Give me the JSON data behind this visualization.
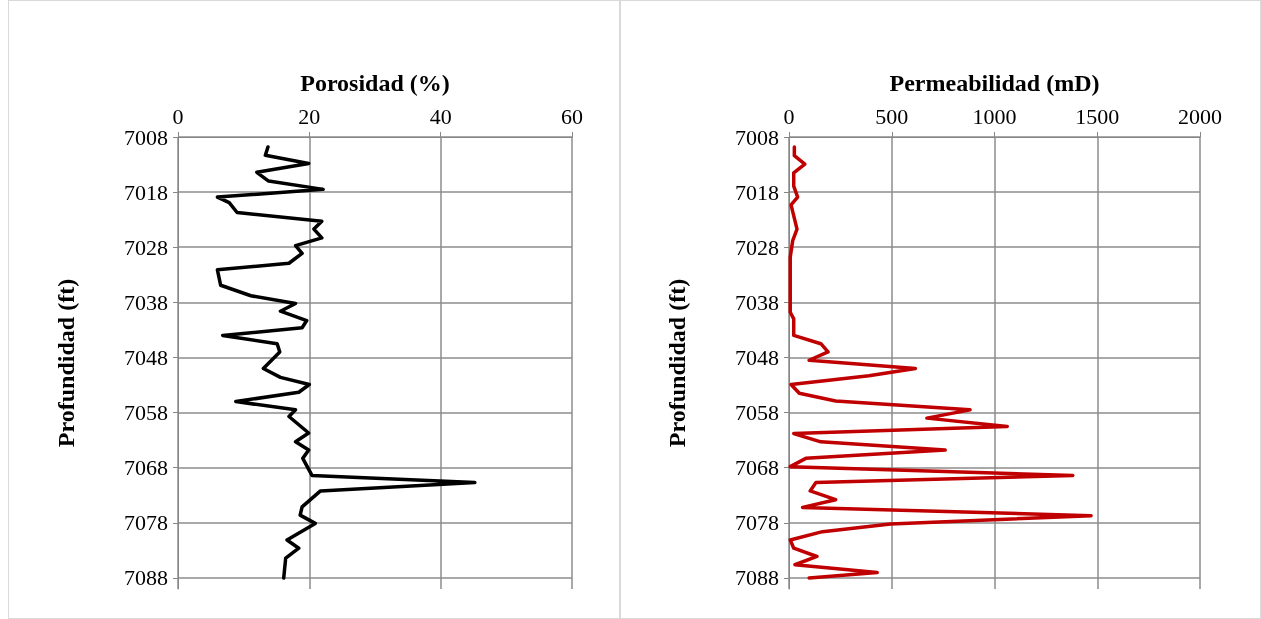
{
  "chart_data": [
    {
      "type": "line",
      "orientation": "horizontal",
      "xlabel": "Porosidad (%)",
      "ylabel": "Profundidad (ft)",
      "color": "#000000",
      "grid": true,
      "x": [
        7009.8,
        7011.3,
        7012.8,
        7014.4,
        7016.0,
        7017.5,
        7018.9,
        7019.9,
        7021.7,
        7023.3,
        7024.7,
        7026.3,
        7027.7,
        7029.1,
        7030.9,
        7032.1,
        7034.9,
        7036.8,
        7038.2,
        7039.6,
        7041.3,
        7042.6,
        7044.0,
        7045.5,
        7047.0,
        7050.0,
        7051.6,
        7052.9,
        7054.3,
        7056.0,
        7057.5,
        7058.7,
        7061.7,
        7063.3,
        7064.8,
        7066.3,
        7069.4,
        7070.7,
        7072.2,
        7075.1,
        7076.6,
        7078.1,
        7081.1,
        7082.6,
        7084.4,
        7088.0
      ],
      "values": [
        13.7,
        13.3,
        19.9,
        12.0,
        13.8,
        22.1,
        6.0,
        7.8,
        9.0,
        21.9,
        20.7,
        21.9,
        17.9,
        18.9,
        16.9,
        6.0,
        6.5,
        11.1,
        17.9,
        15.6,
        19.6,
        18.9,
        6.8,
        15.1,
        15.5,
        13.0,
        15.6,
        20.0,
        18.4,
        8.8,
        17.9,
        16.9,
        19.9,
        17.9,
        19.9,
        19.0,
        20.4,
        45.2,
        21.7,
        18.9,
        18.6,
        20.9,
        16.6,
        18.4,
        16.4,
        16.1
      ],
      "xlim": [
        0,
        60
      ],
      "xticks": [
        0,
        20,
        40,
        60
      ],
      "ylim": [
        7090,
        7008
      ],
      "yticks": [
        7008,
        7018,
        7028,
        7038,
        7048,
        7058,
        7068,
        7078,
        7088
      ]
    },
    {
      "type": "line",
      "orientation": "horizontal",
      "xlabel": "Permeabilidad (mD)",
      "ylabel": "Profundidad (ft)",
      "color": "#c00000",
      "grid": true,
      "x": [
        7009.8,
        7011.4,
        7012.9,
        7014.5,
        7016.9,
        7018.9,
        7020.3,
        7024.7,
        7026.8,
        7029.8,
        7039.8,
        7041.0,
        7044.0,
        7045.5,
        7047.0,
        7048.5,
        7050.0,
        7051.3,
        7052.9,
        7054.5,
        7055.9,
        7057.5,
        7059.0,
        7060.5,
        7061.8,
        7063.3,
        7064.8,
        7066.3,
        7067.8,
        7069.4,
        7070.7,
        7072.2,
        7073.8,
        7075.2,
        7076.7,
        7078.2,
        7079.6,
        7081.1,
        7082.6,
        7084.1,
        7085.6,
        7087.0,
        7088.0
      ],
      "values": [
        26,
        26,
        77,
        23,
        23,
        42,
        10,
        39,
        18,
        6,
        6,
        23,
        23,
        155,
        190,
        98,
        615,
        389,
        10,
        50,
        227,
        881,
        671,
        1062,
        23,
        155,
        760,
        82,
        6,
        1381,
        131,
        103,
        227,
        66,
        1470,
        494,
        163,
        6,
        23,
        136,
        29,
        429,
        98
      ],
      "xlim": [
        0,
        2000
      ],
      "xticks": [
        0,
        500,
        1000,
        1500,
        2000
      ],
      "ylim": [
        7090,
        7008
      ],
      "yticks": [
        7008,
        7018,
        7028,
        7038,
        7048,
        7058,
        7068,
        7078,
        7088
      ]
    }
  ]
}
